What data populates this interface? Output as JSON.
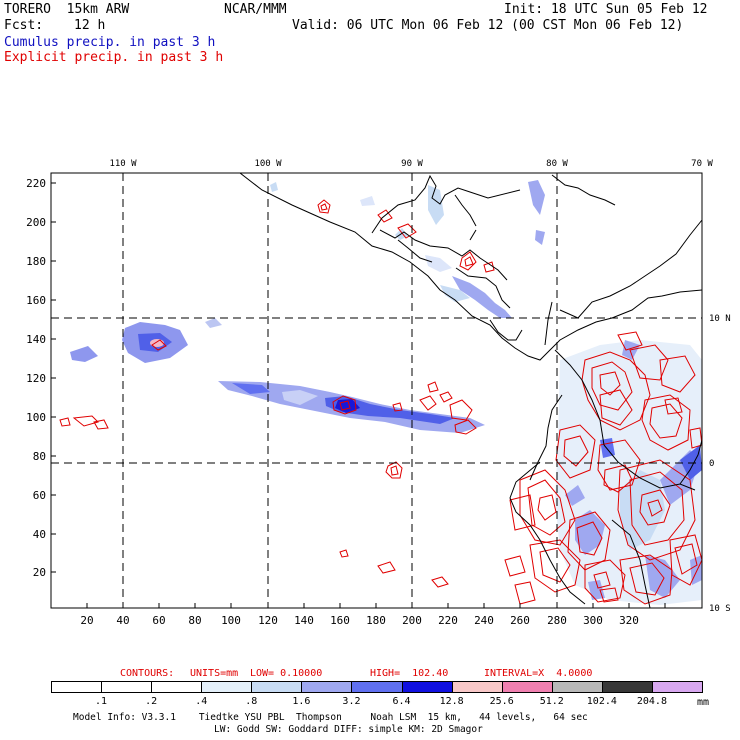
{
  "header": {
    "model": "TORERO  15km ARW",
    "center": "NCAR/MMM",
    "init": "Init: 18 UTC Sun 05 Feb 12",
    "fcst_label": "Fcst:",
    "fcst_value": "12 h",
    "valid": "Valid: 06 UTC Mon 06 Feb 12 (00 CST Mon 06 Feb 12)",
    "field1": "Cumulus precip. in past 3 h",
    "field2": "Explicit precip. in past 3 h"
  },
  "map": {
    "top_lon_labels": [
      "110 W",
      "100 W",
      "90 W",
      "80 W",
      "70 W"
    ],
    "right_lat_labels": [
      "10 N",
      "0",
      "10 S"
    ],
    "y_ticks": [
      "220",
      "200",
      "180",
      "160",
      "140",
      "120",
      "100",
      "80",
      "60",
      "40",
      "20"
    ],
    "x_ticks": [
      "20",
      "40",
      "60",
      "80",
      "100",
      "120",
      "140",
      "160",
      "180",
      "200",
      "220",
      "240",
      "260",
      "280",
      "300",
      "320"
    ]
  },
  "contours": {
    "label": "CONTOURS:",
    "units": "UNITS=mm",
    "low": "LOW= 0.10000",
    "high": "HIGH=  102.40",
    "interval": "INTERVAL=X  4.0000"
  },
  "colorbar": {
    "labels": [
      ".1",
      ".2",
      ".4",
      ".8",
      "1.6",
      "3.2",
      "6.4",
      "12.8",
      "25.6",
      "51.2",
      "102.4",
      "204.8"
    ],
    "unit": "mm",
    "colors": [
      "#ffffff",
      "#ffffff",
      "#ffffff",
      "#e4f0fa",
      "#c8dcf4",
      "#9fa8f0",
      "#6070f0",
      "#1010e0",
      "#f8c8c8",
      "#f080b0",
      "#b8b8b8",
      "#383838",
      "#d8a8f0"
    ]
  },
  "footer": {
    "line1": "Model Info: V3.3.1    Tiedtke YSU PBL  Thompson     Noah LSM  15 km,   44 levels,   64 sec",
    "line2": "LW: Godd SW: Goddard DIFF: simple KM: 2D Smagor"
  }
}
